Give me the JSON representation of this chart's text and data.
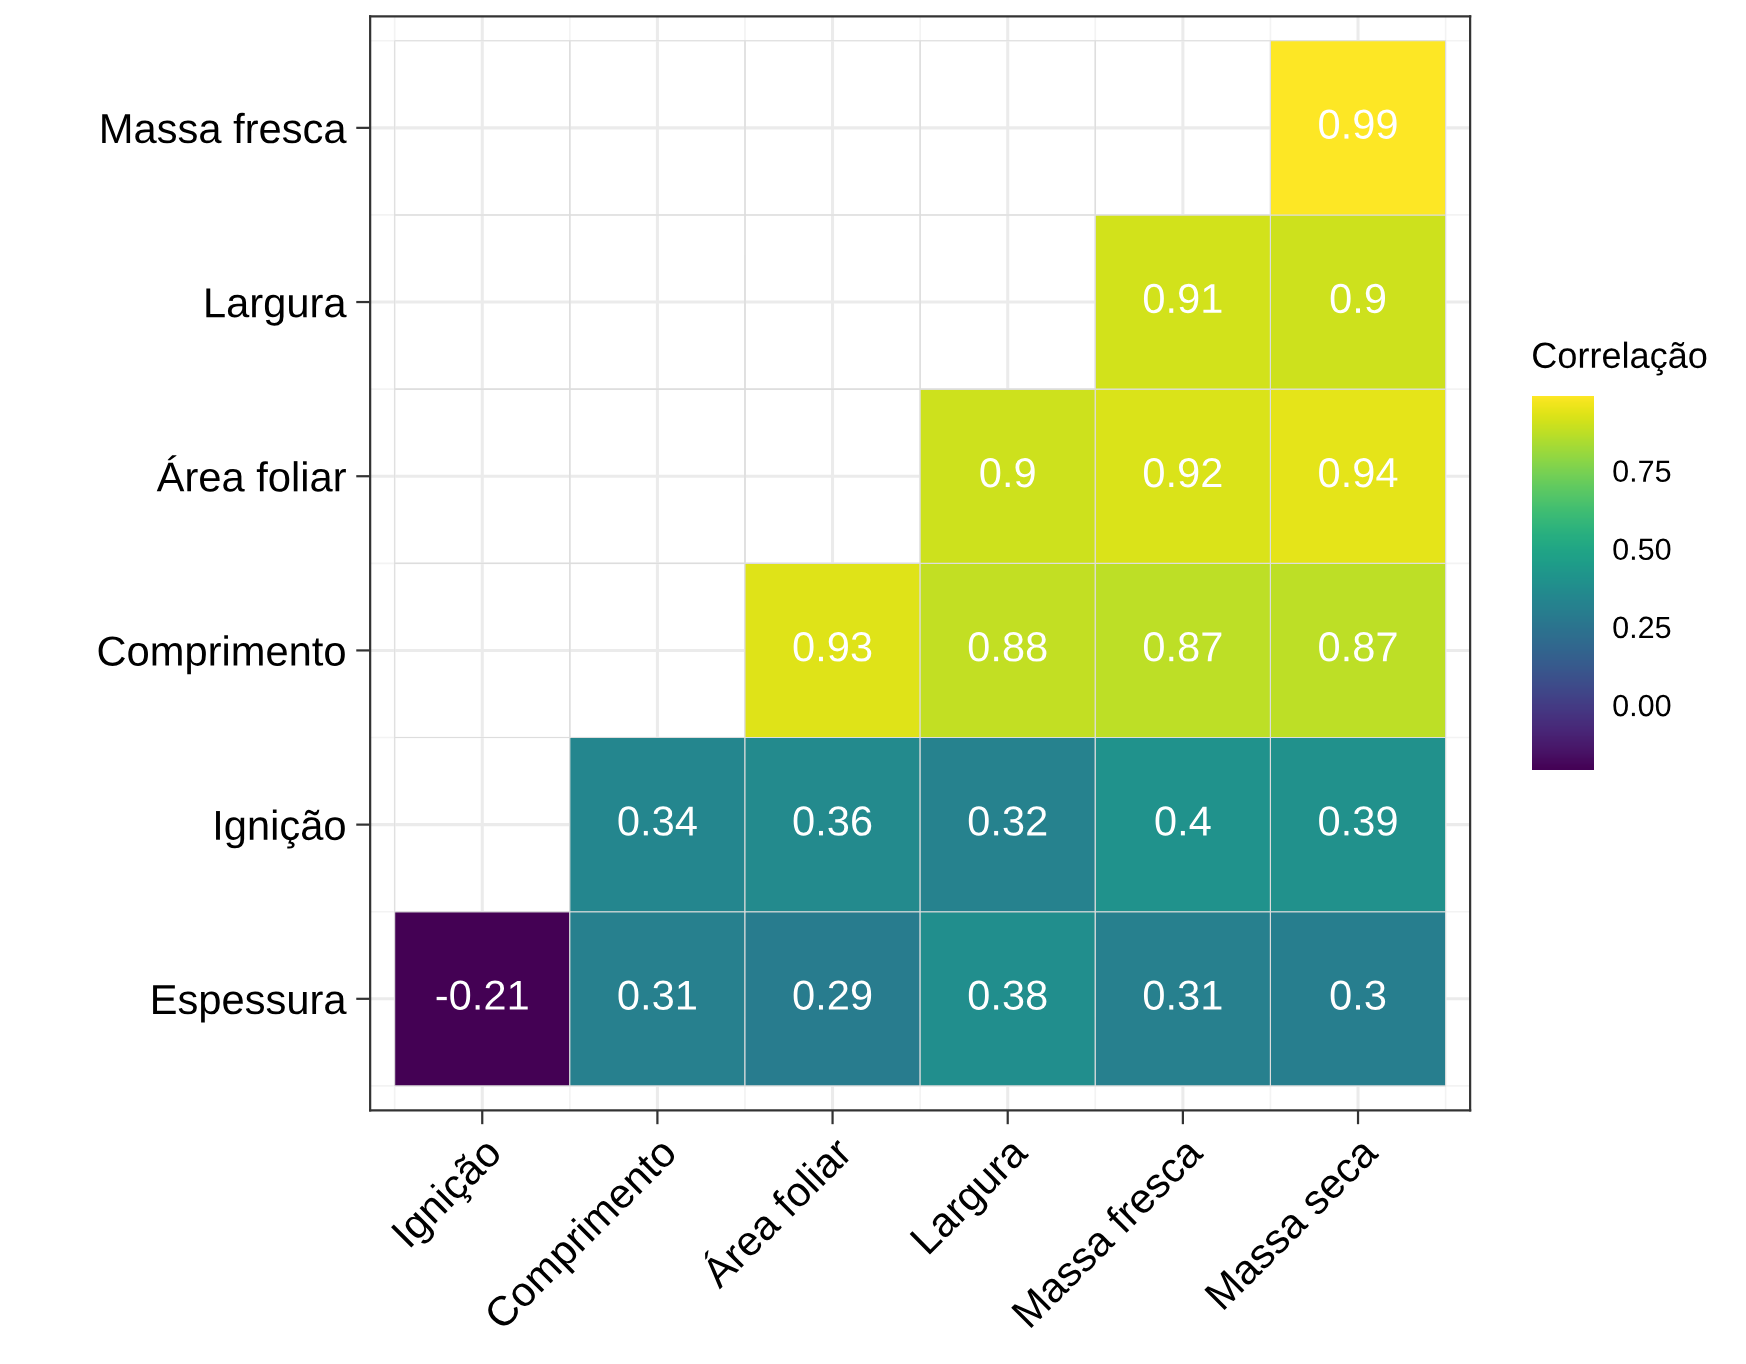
{
  "chart_data": {
    "type": "heatmap",
    "categories": [
      "Ignição",
      "Comprimento",
      "Área foliar",
      "Largura",
      "Massa fresca",
      "Massa seca"
    ],
    "y_categories": [
      "Massa fresca",
      "Largura",
      "Área foliar",
      "Comprimento",
      "Ignição",
      "Espessura"
    ],
    "cells": [
      [
        null,
        null,
        null,
        null,
        null,
        0.99
      ],
      [
        null,
        null,
        null,
        null,
        0.91,
        0.9
      ],
      [
        null,
        null,
        null,
        0.9,
        0.92,
        0.94
      ],
      [
        null,
        null,
        0.93,
        0.88,
        0.87,
        0.87
      ],
      [
        null,
        0.34,
        0.36,
        0.32,
        0.4,
        0.39
      ],
      [
        -0.21,
        0.31,
        0.29,
        0.38,
        0.31,
        0.3
      ]
    ],
    "clabel": "Correlação",
    "clim": [
      -0.21,
      0.99
    ],
    "cticks": [
      {
        "value": 0,
        "label": "0.00"
      },
      {
        "value": 0.25,
        "label": "0.25"
      },
      {
        "value": 0.5,
        "label": "0.50"
      },
      {
        "value": 0.75,
        "label": "0.75"
      }
    ],
    "data_labels": true,
    "grid": true
  }
}
